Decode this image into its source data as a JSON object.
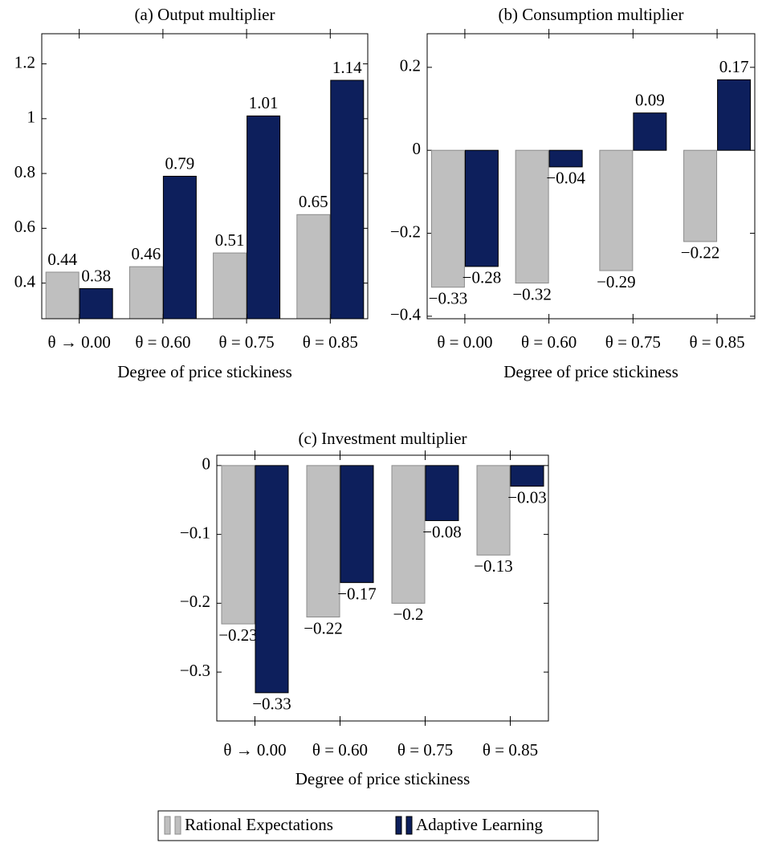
{
  "chart_data": [
    {
      "type": "bar",
      "title": "(a) Output multiplier",
      "x_label": "Degree of price stickiness",
      "categories": [
        "θ → 0.00",
        "θ = 0.60",
        "θ = 0.75",
        "θ = 0.85"
      ],
      "series": [
        {
          "name": "Rational Expectations",
          "color": "#bfbfbf",
          "values": [
            0.44,
            0.46,
            0.51,
            0.65
          ]
        },
        {
          "name": "Adaptive Learning",
          "color": "#0d1f5c",
          "values": [
            0.38,
            0.79,
            1.01,
            1.14
          ]
        }
      ],
      "ylim": [
        0.27,
        1.31
      ],
      "yticks": [
        0.4,
        0.6,
        0.8,
        1,
        1.2
      ]
    },
    {
      "type": "bar",
      "title": "(b) Consumption multiplier",
      "x_label": "Degree of price stickiness",
      "categories": [
        "θ = 0.00",
        "θ = 0.60",
        "θ = 0.75",
        "θ = 0.85"
      ],
      "series": [
        {
          "name": "Rational Expectations",
          "color": "#bfbfbf",
          "values": [
            -0.33,
            -0.32,
            -0.29,
            -0.22
          ],
          "value_labels": [
            "−0.33",
            "−0.32",
            "−0.29",
            "−0.22"
          ]
        },
        {
          "name": "Adaptive Learning",
          "color": "#0d1f5c",
          "values": [
            -0.28,
            -0.04,
            0.09,
            0.17
          ],
          "value_labels": [
            "−0.28",
            "−0.04",
            "0.09",
            "0.17"
          ]
        }
      ],
      "ylim": [
        -0.406,
        0.281
      ],
      "yticks": [
        {
          "value": -0.4,
          "label": "−0.4"
        },
        {
          "value": -0.2,
          "label": "−0.2"
        },
        0,
        0.2
      ]
    },
    {
      "type": "bar",
      "title": "(c) Investment multiplier",
      "x_label": "Degree of price stickiness",
      "categories": [
        "θ → 0.00",
        "θ = 0.60",
        "θ = 0.75",
        "θ = 0.85"
      ],
      "series": [
        {
          "name": "Rational Expectations",
          "color": "#bfbfbf",
          "values": [
            -0.23,
            -0.22,
            -0.2,
            -0.13
          ],
          "value_labels": [
            "−0.23",
            "−0.22",
            "−0.2",
            "−0.13"
          ]
        },
        {
          "name": "Adaptive Learning",
          "color": "#0d1f5c",
          "values": [
            -0.33,
            -0.17,
            -0.08,
            -0.03
          ],
          "value_labels": [
            "−0.33",
            "−0.17",
            "−0.08",
            "−0.03"
          ]
        }
      ],
      "ylim": [
        -0.371,
        0.015
      ],
      "yticks": [
        {
          "value": -0.3,
          "label": "−0.3"
        },
        {
          "value": -0.2,
          "label": "−0.2"
        },
        {
          "value": -0.1,
          "label": "−0.1"
        },
        0
      ]
    }
  ]
}
